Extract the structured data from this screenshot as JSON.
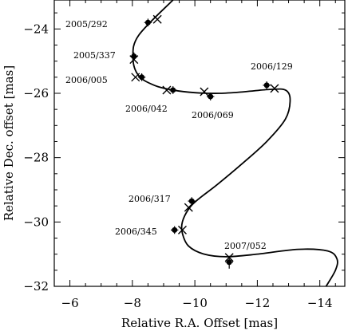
{
  "chart_data": {
    "type": "scatter",
    "title": "",
    "xlabel": "Relative R.A. Offset  [mas]",
    "ylabel": "Relative Dec. offset [mas]",
    "xlim": [
      -5.5,
      -14.8
    ],
    "ylim": [
      -32,
      -23.1
    ],
    "x_direction": "reversed",
    "xticks": [
      -6,
      -8,
      -10,
      -12,
      -14
    ],
    "yticks": [
      -24,
      -26,
      -28,
      -30,
      -32
    ],
    "grid": false,
    "legend": "none",
    "series": [
      {
        "marker": "filled-circle-with-errorbars",
        "points": [
          {
            "epoch": "2005/292",
            "x": -8.5,
            "y": -23.8,
            "xerr": 0.12,
            "yerr": 0.12
          },
          {
            "epoch": "2005/337",
            "x": -8.05,
            "y": -24.85,
            "xerr": 0.12,
            "yerr": 0.12
          },
          {
            "epoch": "2006/005",
            "x": -8.3,
            "y": -25.5,
            "xerr": 0.12,
            "yerr": 0.12
          },
          {
            "epoch": "2006/042",
            "x": -9.3,
            "y": -25.9,
            "xerr": 0.12,
            "yerr": 0.12
          },
          {
            "epoch": "2006/069",
            "x": -10.5,
            "y": -26.1,
            "xerr": 0.12,
            "yerr": 0.12
          },
          {
            "epoch": "2006/129",
            "x": -12.3,
            "y": -25.75,
            "xerr": 0.12,
            "yerr": 0.12
          },
          {
            "epoch": "2006/317",
            "x": -9.9,
            "y": -29.35,
            "xerr": 0.12,
            "yerr": 0.12
          },
          {
            "epoch": "2006/345",
            "x": -9.35,
            "y": -30.25,
            "xerr": 0.12,
            "yerr": 0.12
          },
          {
            "epoch": "2007/052",
            "x": -11.1,
            "y": -31.25,
            "xerr": 0.12,
            "yerr": 0.2
          }
        ]
      },
      {
        "marker": "cross",
        "points": [
          {
            "x": -8.8,
            "y": -23.7
          },
          {
            "x": -8.05,
            "y": -24.95
          },
          {
            "x": -8.1,
            "y": -25.5
          },
          {
            "x": -9.1,
            "y": -25.9
          },
          {
            "x": -10.3,
            "y": -25.95
          },
          {
            "x": -12.55,
            "y": -25.85
          },
          {
            "x": -9.8,
            "y": -29.55
          },
          {
            "x": -9.6,
            "y": -30.25
          },
          {
            "x": -11.1,
            "y": -31.1
          }
        ]
      },
      {
        "type": "line",
        "points": [
          [
            -9.3,
            -23.1
          ],
          [
            -8.2,
            -24.2
          ],
          [
            -8.02,
            -24.9
          ],
          [
            -8.2,
            -25.45
          ],
          [
            -8.7,
            -25.75
          ],
          [
            -9.3,
            -25.9
          ],
          [
            -10.0,
            -25.98
          ],
          [
            -10.8,
            -26.0
          ],
          [
            -11.6,
            -25.95
          ],
          [
            -12.4,
            -25.88
          ],
          [
            -12.9,
            -25.9
          ],
          [
            -13.05,
            -26.2
          ],
          [
            -12.9,
            -26.8
          ],
          [
            -12.3,
            -27.5
          ],
          [
            -11.5,
            -28.2
          ],
          [
            -10.7,
            -28.85
          ],
          [
            -10.1,
            -29.3
          ],
          [
            -9.8,
            -29.6
          ],
          [
            -9.6,
            -30.0
          ],
          [
            -9.6,
            -30.35
          ],
          [
            -9.8,
            -30.75
          ],
          [
            -10.3,
            -31.0
          ],
          [
            -11.0,
            -31.08
          ],
          [
            -12.0,
            -31.0
          ],
          [
            -13.3,
            -30.85
          ],
          [
            -14.25,
            -30.9
          ],
          [
            -14.55,
            -31.15
          ],
          [
            -14.5,
            -31.5
          ],
          [
            -14.2,
            -32.0
          ]
        ]
      }
    ]
  }
}
